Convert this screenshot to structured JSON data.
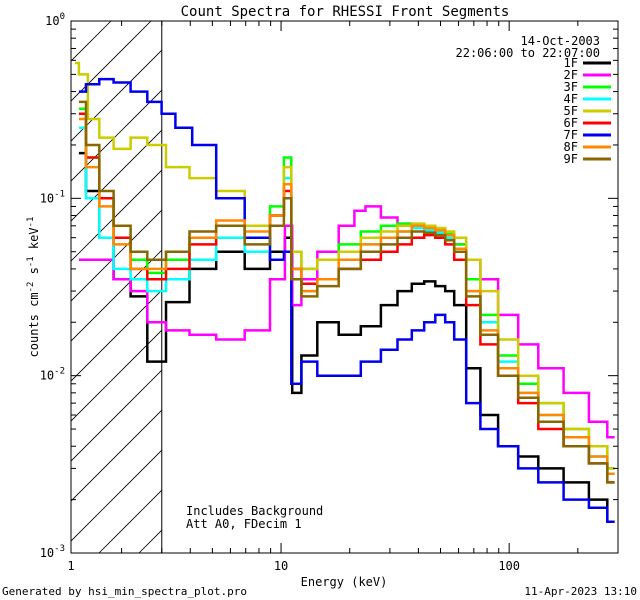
{
  "chart_data": {
    "type": "line",
    "title": "Count Spectra for RHESSI Front Segments",
    "xlabel": "Energy (keV)",
    "ylabel": "counts cm-2 s-1 keV-1",
    "x_scale": "log",
    "y_scale": "log",
    "xlim": [
      1.2,
      300
    ],
    "ylim": [
      0.001,
      1
    ],
    "x_ticks": [
      {
        "v": 10,
        "label": "10"
      },
      {
        "v": 100,
        "label": "100"
      }
    ],
    "x_tick_first_label": "1",
    "y_ticks": [
      {
        "v": 1,
        "label": "10",
        "exp": "0"
      },
      {
        "v": 0.1,
        "label": "10",
        "exp": "-1"
      },
      {
        "v": 0.01,
        "label": "10",
        "exp": "-2"
      },
      {
        "v": 0.001,
        "label": "10",
        "exp": "-3"
      }
    ],
    "date": "14-Oct-2003",
    "time_range": "22:06:00 to 22:07:00",
    "hatched_below_keV": 3,
    "annotation_lines": [
      "Includes Background",
      "Att A0, FDecim 1"
    ],
    "legend_placement": "top-right",
    "footer_left": "Generated by hsi_min_spectra_plot.pro",
    "footer_right": "11-Apr-2023 13:10",
    "series": [
      {
        "name": "1F",
        "color": "#000000",
        "x": [
          1.3,
          1.5,
          1.7,
          2.0,
          2.4,
          2.8,
          3.5,
          4.5,
          6.0,
          8.0,
          10.0,
          10.8,
          11.6,
          13.0,
          16.0,
          20.0,
          25.0,
          30.0,
          35.0,
          40.0,
          45.0,
          50.0,
          55.0,
          60.0,
          70.0,
          80.0,
          100.0,
          120.0,
          150.0,
          200.0,
          250.0,
          290.0
        ],
        "y": [
          0.18,
          0.11,
          0.06,
          0.035,
          0.028,
          0.012,
          0.026,
          0.04,
          0.05,
          0.04,
          0.05,
          0.06,
          0.008,
          0.013,
          0.02,
          0.017,
          0.019,
          0.025,
          0.03,
          0.033,
          0.034,
          0.032,
          0.03,
          0.025,
          0.011,
          0.006,
          0.004,
          0.0035,
          0.003,
          0.0025,
          0.002,
          0.0015
        ]
      },
      {
        "name": "2F",
        "color": "#ff00ff",
        "x": [
          1.3,
          1.5,
          1.7,
          2.0,
          2.4,
          2.8,
          3.5,
          4.5,
          6.0,
          8.0,
          10.0,
          10.8,
          11.6,
          13.0,
          16.0,
          20.0,
          22.0,
          25.0,
          30.0,
          35.0,
          40.0,
          45.0,
          50.0,
          55.0,
          60.0,
          70.0,
          80.0,
          100.0,
          120.0,
          150.0,
          200.0,
          250.0,
          290.0
        ],
        "y": [
          0.045,
          0.045,
          0.045,
          0.035,
          0.03,
          0.02,
          0.018,
          0.017,
          0.016,
          0.018,
          0.035,
          0.07,
          0.025,
          0.035,
          0.05,
          0.07,
          0.085,
          0.09,
          0.078,
          0.072,
          0.07,
          0.068,
          0.066,
          0.06,
          0.055,
          0.045,
          0.035,
          0.022,
          0.015,
          0.011,
          0.008,
          0.0055,
          0.0045
        ]
      },
      {
        "name": "3F",
        "color": "#00ff00",
        "x": [
          1.3,
          1.5,
          1.7,
          2.0,
          2.4,
          2.8,
          3.5,
          4.5,
          6.0,
          8.0,
          10.0,
          10.6,
          11.6,
          13.0,
          16.0,
          20.0,
          25.0,
          30.0,
          35.0,
          40.0,
          45.0,
          50.0,
          55.0,
          60.0,
          70.0,
          80.0,
          100.0,
          120.0,
          150.0,
          200.0,
          250.0,
          290.0
        ],
        "y": [
          0.32,
          0.17,
          0.1,
          0.06,
          0.045,
          0.038,
          0.045,
          0.06,
          0.07,
          0.06,
          0.09,
          0.17,
          0.05,
          0.04,
          0.045,
          0.055,
          0.065,
          0.07,
          0.072,
          0.07,
          0.069,
          0.067,
          0.063,
          0.055,
          0.035,
          0.022,
          0.013,
          0.009,
          0.007,
          0.005,
          0.004,
          0.003
        ]
      },
      {
        "name": "4F",
        "color": "#00ffff",
        "x": [
          1.3,
          1.5,
          1.7,
          2.0,
          2.4,
          2.8,
          3.5,
          4.5,
          6.0,
          8.0,
          10.0,
          10.6,
          11.6,
          13.0,
          16.0,
          20.0,
          25.0,
          30.0,
          35.0,
          40.0,
          45.0,
          50.0,
          55.0,
          60.0,
          70.0,
          80.0,
          100.0,
          120.0,
          150.0,
          200.0,
          250.0,
          290.0
        ],
        "y": [
          0.25,
          0.1,
          0.06,
          0.04,
          0.035,
          0.03,
          0.035,
          0.045,
          0.06,
          0.05,
          0.08,
          0.13,
          0.04,
          0.03,
          0.035,
          0.04,
          0.055,
          0.06,
          0.065,
          0.068,
          0.066,
          0.064,
          0.06,
          0.05,
          0.03,
          0.02,
          0.012,
          0.008,
          0.006,
          0.004,
          0.0035,
          0.0028
        ]
      },
      {
        "name": "5F",
        "color": "#cccc00",
        "x": [
          1.25,
          1.35,
          1.5,
          1.7,
          2.0,
          2.4,
          2.8,
          3.5,
          4.5,
          6.0,
          8.0,
          10.0,
          10.6,
          11.6,
          13.0,
          16.0,
          20.0,
          25.0,
          30.0,
          35.0,
          40.0,
          45.0,
          50.0,
          55.0,
          60.0,
          70.0,
          80.0,
          100.0,
          120.0,
          150.0,
          200.0,
          250.0,
          290.0
        ],
        "y": [
          0.58,
          0.5,
          0.28,
          0.22,
          0.19,
          0.22,
          0.2,
          0.15,
          0.13,
          0.11,
          0.07,
          0.08,
          0.15,
          0.05,
          0.04,
          0.045,
          0.05,
          0.06,
          0.065,
          0.07,
          0.072,
          0.07,
          0.068,
          0.065,
          0.06,
          0.045,
          0.03,
          0.016,
          0.01,
          0.007,
          0.005,
          0.004,
          0.003
        ]
      },
      {
        "name": "6F",
        "color": "#ff0000",
        "x": [
          1.3,
          1.5,
          1.7,
          2.0,
          2.4,
          2.8,
          3.5,
          4.5,
          6.0,
          8.0,
          10.0,
          10.6,
          11.6,
          13.0,
          16.0,
          20.0,
          25.0,
          30.0,
          35.0,
          40.0,
          45.0,
          50.0,
          55.0,
          60.0,
          70.0,
          80.0,
          100.0,
          120.0,
          150.0,
          200.0,
          250.0,
          290.0
        ],
        "y": [
          0.3,
          0.17,
          0.1,
          0.06,
          0.04,
          0.035,
          0.04,
          0.055,
          0.07,
          0.06,
          0.08,
          0.11,
          0.04,
          0.033,
          0.035,
          0.04,
          0.045,
          0.05,
          0.055,
          0.06,
          0.062,
          0.06,
          0.055,
          0.045,
          0.025,
          0.015,
          0.01,
          0.007,
          0.005,
          0.004,
          0.0032,
          0.0025
        ]
      },
      {
        "name": "7F",
        "color": "#0000ee",
        "x": [
          1.3,
          1.5,
          1.7,
          2.0,
          2.4,
          2.8,
          3.2,
          3.7,
          4.5,
          6.0,
          8.0,
          10.0,
          10.6,
          11.6,
          13.0,
          16.0,
          20.0,
          25.0,
          30.0,
          35.0,
          40.0,
          45.0,
          50.0,
          55.0,
          60.0,
          70.0,
          80.0,
          100.0,
          120.0,
          150.0,
          200.0,
          250.0,
          290.0
        ],
        "y": [
          0.4,
          0.44,
          0.47,
          0.45,
          0.4,
          0.35,
          0.3,
          0.25,
          0.2,
          0.1,
          0.06,
          0.045,
          0.05,
          0.009,
          0.012,
          0.01,
          0.01,
          0.012,
          0.014,
          0.016,
          0.018,
          0.02,
          0.022,
          0.02,
          0.016,
          0.007,
          0.005,
          0.004,
          0.003,
          0.0025,
          0.002,
          0.0018,
          0.0015
        ]
      },
      {
        "name": "8F",
        "color": "#ff8800",
        "x": [
          1.3,
          1.5,
          1.7,
          2.0,
          2.4,
          2.8,
          3.5,
          4.5,
          6.0,
          8.0,
          10.0,
          10.6,
          11.6,
          13.0,
          16.0,
          20.0,
          25.0,
          30.0,
          35.0,
          40.0,
          45.0,
          50.0,
          55.0,
          60.0,
          70.0,
          80.0,
          100.0,
          120.0,
          150.0,
          200.0,
          250.0,
          290.0
        ],
        "y": [
          0.28,
          0.15,
          0.09,
          0.055,
          0.04,
          0.04,
          0.05,
          0.06,
          0.075,
          0.065,
          0.08,
          0.12,
          0.04,
          0.03,
          0.035,
          0.045,
          0.055,
          0.06,
          0.065,
          0.07,
          0.068,
          0.066,
          0.062,
          0.052,
          0.03,
          0.018,
          0.011,
          0.008,
          0.006,
          0.0045,
          0.0035,
          0.0028
        ]
      },
      {
        "name": "9F",
        "color": "#886600",
        "x": [
          1.3,
          1.5,
          1.7,
          2.0,
          2.4,
          2.8,
          3.5,
          4.5,
          6.0,
          8.0,
          10.0,
          10.6,
          11.6,
          13.0,
          16.0,
          20.0,
          25.0,
          30.0,
          35.0,
          40.0,
          45.0,
          50.0,
          55.0,
          60.0,
          70.0,
          80.0,
          100.0,
          120.0,
          150.0,
          200.0,
          250.0,
          290.0
        ],
        "y": [
          0.35,
          0.2,
          0.11,
          0.07,
          0.05,
          0.045,
          0.05,
          0.065,
          0.07,
          0.055,
          0.07,
          0.1,
          0.035,
          0.028,
          0.032,
          0.04,
          0.05,
          0.055,
          0.06,
          0.065,
          0.064,
          0.062,
          0.058,
          0.05,
          0.028,
          0.017,
          0.01,
          0.0075,
          0.0055,
          0.004,
          0.0032,
          0.0025
        ]
      }
    ]
  }
}
